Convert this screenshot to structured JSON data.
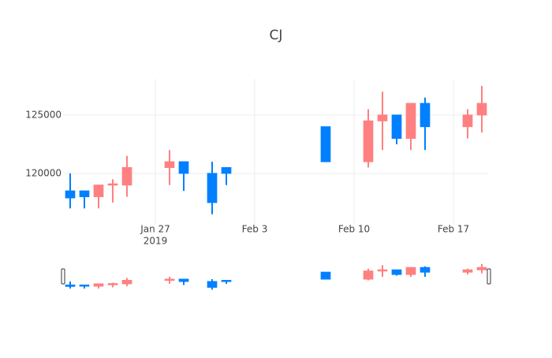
{
  "chart_data": {
    "type": "candlestick",
    "title": "CJ",
    "x": [
      "2019-01-21",
      "2019-01-22",
      "2019-01-23",
      "2019-01-24",
      "2019-01-25",
      "2019-01-28",
      "2019-01-29",
      "2019-01-31",
      "2019-02-01",
      "2019-02-08",
      "2019-02-11",
      "2019-02-12",
      "2019-02-13",
      "2019-02-14",
      "2019-02-15",
      "2019-02-18",
      "2019-02-19"
    ],
    "open": [
      118500,
      118500,
      118000,
      119000,
      119000,
      120500,
      121000,
      120000,
      120500,
      124000,
      121000,
      124500,
      125000,
      123000,
      126000,
      124000,
      125000
    ],
    "high": [
      120000,
      118500,
      119000,
      119500,
      121500,
      122000,
      121000,
      121000,
      120500,
      124000,
      125500,
      127000,
      125000,
      126000,
      126500,
      125500,
      127500
    ],
    "low": [
      117000,
      117000,
      117000,
      117500,
      118000,
      119000,
      118500,
      116500,
      119000,
      121000,
      120500,
      122000,
      122500,
      122000,
      122000,
      123000,
      123500
    ],
    "close": [
      117900,
      118000,
      119000,
      119100,
      120500,
      121000,
      120000,
      117500,
      120000,
      121000,
      124500,
      125000,
      123000,
      126000,
      124000,
      125000,
      126000
    ],
    "increasing_color": "#ff8080",
    "decreasing_color": "#0080ff",
    "xlim": [
      "2019-01-20T12:00",
      "2019-02-19T12:00"
    ],
    "xticks": [
      {
        "value": "2019-01-27",
        "label": [
          "Jan 27",
          "2019"
        ]
      },
      {
        "value": "2019-02-03",
        "label": [
          "Feb 3"
        ]
      },
      {
        "value": "2019-02-10",
        "label": [
          "Feb 10"
        ]
      },
      {
        "value": "2019-02-17",
        "label": [
          "Feb 17"
        ]
      }
    ],
    "ylim": [
      115600,
      128100
    ],
    "yticks": [
      120000,
      125000
    ],
    "grid": true,
    "rangeslider": true
  }
}
